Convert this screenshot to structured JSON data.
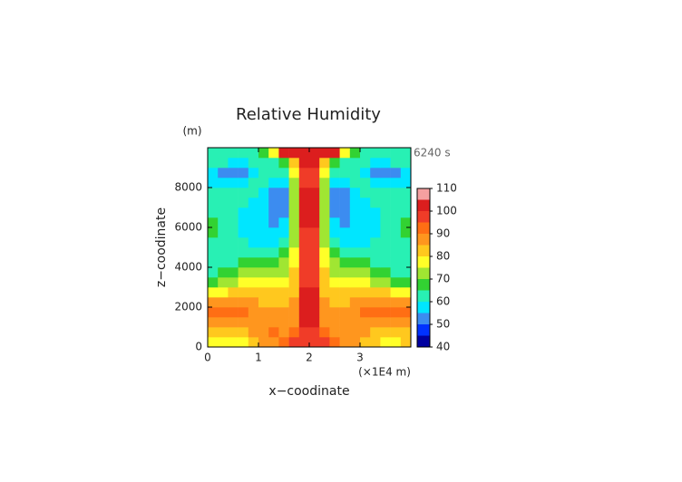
{
  "chart_data": {
    "type": "contour",
    "title": "Relative Humidity",
    "y_unit_label": "(m)",
    "time_label": "6240 s",
    "x_label": "x−coodinate",
    "y_label": "z−coodinate",
    "x_unit_label": "(×1E4 m)",
    "xlim": [
      0,
      4
    ],
    "xticks": [
      0,
      1,
      2,
      3
    ],
    "ylim": [
      0,
      10000
    ],
    "yticks": [
      0,
      2000,
      4000,
      6000,
      8000
    ],
    "x": [
      0.1,
      0.3,
      0.5,
      0.7,
      0.9,
      1.1,
      1.3,
      1.5,
      1.7,
      1.9,
      2.1,
      2.3,
      2.5,
      2.7,
      2.9,
      3.1,
      3.3,
      3.5,
      3.7,
      3.9
    ],
    "y": [
      250,
      750,
      1250,
      1750,
      2250,
      2750,
      3250,
      3750,
      4250,
      4750,
      5250,
      5750,
      6250,
      6750,
      7250,
      7750,
      8250,
      8750,
      9250,
      9750
    ],
    "z": [
      [
        78,
        76,
        76,
        78,
        82,
        85,
        88,
        92,
        95,
        98,
        98,
        95,
        92,
        88,
        85,
        82,
        80,
        78,
        78,
        80
      ],
      [
        82,
        80,
        80,
        82,
        85,
        88,
        90,
        88,
        90,
        97,
        97,
        90,
        88,
        88,
        88,
        85,
        82,
        80,
        82,
        82
      ],
      [
        86,
        87,
        88,
        88,
        88,
        88,
        88,
        86,
        88,
        100,
        100,
        88,
        86,
        88,
        88,
        88,
        88,
        87,
        86,
        86
      ],
      [
        90,
        91,
        92,
        90,
        88,
        87,
        87,
        87,
        88,
        100,
        100,
        88,
        87,
        87,
        88,
        90,
        92,
        92,
        91,
        90
      ],
      [
        86,
        87,
        87,
        86,
        85,
        84,
        84,
        84,
        86,
        100,
        100,
        86,
        84,
        84,
        85,
        86,
        87,
        87,
        86,
        86
      ],
      [
        76,
        78,
        80,
        82,
        82,
        82,
        81,
        81,
        84,
        100,
        100,
        84,
        81,
        81,
        82,
        82,
        82,
        80,
        78,
        76
      ],
      [
        68,
        70,
        73,
        76,
        77,
        77,
        77,
        77,
        82,
        98,
        98,
        82,
        77,
        77,
        77,
        76,
        73,
        70,
        68,
        68
      ],
      [
        64,
        66,
        68,
        70,
        72,
        72,
        72,
        73,
        80,
        98,
        98,
        80,
        73,
        72,
        72,
        70,
        68,
        66,
        64,
        64
      ],
      [
        62,
        63,
        64,
        65,
        66,
        67,
        68,
        70,
        78,
        98,
        98,
        78,
        70,
        68,
        67,
        65,
        64,
        63,
        62,
        62
      ],
      [
        60,
        61,
        61,
        62,
        62,
        63,
        64,
        66,
        76,
        97,
        97,
        76,
        66,
        64,
        63,
        62,
        61,
        61,
        60,
        60
      ],
      [
        62,
        61,
        60,
        60,
        59,
        58,
        58,
        60,
        74,
        97,
        97,
        74,
        60,
        58,
        58,
        59,
        60,
        60,
        61,
        62
      ],
      [
        66,
        62,
        60,
        58,
        57,
        56,
        56,
        58,
        72,
        98,
        98,
        72,
        58,
        56,
        56,
        57,
        58,
        60,
        62,
        66
      ],
      [
        66,
        62,
        60,
        58,
        56,
        55,
        54,
        56,
        72,
        100,
        100,
        72,
        56,
        54,
        55,
        56,
        58,
        60,
        62,
        66
      ],
      [
        62,
        61,
        60,
        58,
        57,
        56,
        54,
        54,
        72,
        102,
        102,
        72,
        54,
        54,
        56,
        57,
        58,
        60,
        61,
        62
      ],
      [
        62,
        61,
        61,
        60,
        59,
        58,
        54,
        53,
        72,
        102,
        102,
        72,
        53,
        54,
        58,
        59,
        60,
        61,
        61,
        62
      ],
      [
        60,
        60,
        60,
        61,
        60,
        58,
        53,
        52,
        72,
        100,
        100,
        72,
        52,
        53,
        58,
        60,
        61,
        60,
        60,
        60
      ],
      [
        56,
        55,
        56,
        58,
        60,
        60,
        57,
        55,
        74,
        98,
        98,
        74,
        55,
        57,
        60,
        60,
        58,
        56,
        55,
        56
      ],
      [
        57,
        54,
        53,
        54,
        58,
        60,
        60,
        62,
        76,
        98,
        98,
        76,
        62,
        60,
        60,
        58,
        54,
        53,
        54,
        57
      ],
      [
        60,
        60,
        59,
        58,
        60,
        62,
        64,
        66,
        80,
        100,
        100,
        80,
        66,
        64,
        62,
        60,
        58,
        59,
        60,
        60
      ],
      [
        62,
        62,
        62,
        62,
        63,
        66,
        75,
        100,
        101,
        102,
        102,
        101,
        100,
        75,
        66,
        63,
        62,
        62,
        62,
        62
      ]
    ],
    "levels": [
      40,
      45,
      50,
      55,
      60,
      65,
      70,
      75,
      80,
      85,
      90,
      95,
      100,
      105,
      110
    ],
    "colors": [
      "#0000a0",
      "#0032ff",
      "#3c8cf0",
      "#00e6ff",
      "#28f0b4",
      "#32d232",
      "#a0e632",
      "#ffff28",
      "#ffc81e",
      "#ff961e",
      "#ff6e14",
      "#f03c28",
      "#dc1e1e",
      "#f5a0a0"
    ],
    "colorbar_ticks": [
      40,
      50,
      60,
      70,
      80,
      90,
      100,
      110
    ]
  }
}
